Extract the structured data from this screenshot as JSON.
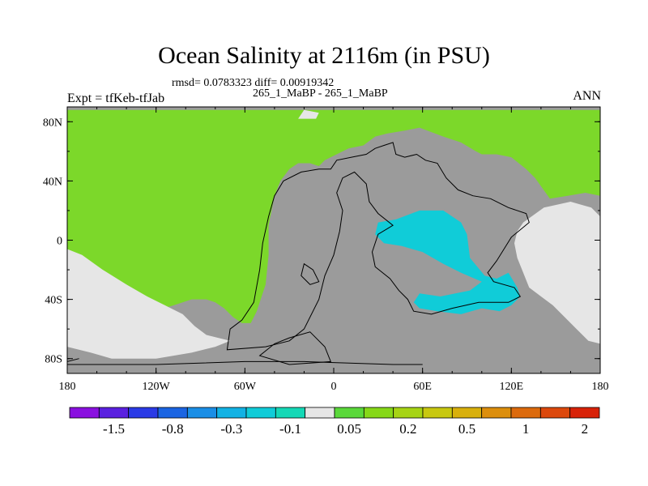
{
  "chart_data": {
    "type": "heatmap",
    "title": "Ocean Salinity at 2116m (in PSU)",
    "stats_text": "rmsd= 0.0783323 diff= 0.00919342",
    "subtitle": "265_1_MaBP - 265_1_MaBP",
    "left_label": "Expt = tfKeb-tfJab",
    "right_label": "ANN",
    "xlim": [
      -180,
      180
    ],
    "ylim": [
      -90,
      90
    ],
    "x_ticks": [
      {
        "value": -180,
        "label": "180"
      },
      {
        "value": -120,
        "label": "120W"
      },
      {
        "value": -60,
        "label": "60W"
      },
      {
        "value": 0,
        "label": "0"
      },
      {
        "value": 60,
        "label": "60E"
      },
      {
        "value": 120,
        "label": "120E"
      },
      {
        "value": 180,
        "label": "180"
      }
    ],
    "y_ticks": [
      {
        "value": 80,
        "label": "80N"
      },
      {
        "value": 40,
        "label": "40N"
      },
      {
        "value": 0,
        "label": "0"
      },
      {
        "value": -40,
        "label": "40S"
      },
      {
        "value": -80,
        "label": "80S"
      }
    ],
    "colorbar": {
      "colors": [
        "#8a10e0",
        "#5a20e0",
        "#2a3ae6",
        "#1a64e2",
        "#1a8ee6",
        "#12b2e4",
        "#10ccd8",
        "#14d8b6",
        "#e6e6e6",
        "#5ad83a",
        "#86d818",
        "#a6d414",
        "#c8c810",
        "#d8b00c",
        "#dc8e0c",
        "#dc6a0c",
        "#dc480c",
        "#d82208"
      ],
      "labels": [
        {
          "after_box": 2,
          "text": "-1.5"
        },
        {
          "after_box": 4,
          "text": "-0.8"
        },
        {
          "after_box": 6,
          "text": "-0.3"
        },
        {
          "after_box": 8,
          "text": "-0.1"
        },
        {
          "after_box": 10,
          "text": "0.05"
        },
        {
          "after_box": 12,
          "text": "0.2"
        },
        {
          "after_box": 14,
          "text": "0.5"
        },
        {
          "after_box": 16,
          "text": "1"
        },
        {
          "after_box": 18,
          "text": "2"
        }
      ]
    },
    "regions": {
      "background_land": "#9b9b9b",
      "green_positive": "#7cd82a",
      "light_near_zero": "#e6e6e6",
      "cyan_negative": "#10ccd8"
    },
    "polygons": {
      "green_main": [
        [
          -180,
          88
        ],
        [
          -180,
          -66
        ],
        [
          -176,
          -66
        ],
        [
          -168,
          -64
        ],
        [
          -158,
          -62
        ],
        [
          -148,
          -58
        ],
        [
          -136,
          -52
        ],
        [
          -122,
          -48
        ],
        [
          -108,
          -44
        ],
        [
          -96,
          -40
        ],
        [
          -86,
          -40
        ],
        [
          -80,
          -42
        ],
        [
          -74,
          -46
        ],
        [
          -68,
          -52
        ],
        [
          -62,
          -56
        ],
        [
          -56,
          -56
        ],
        [
          -52,
          -48
        ],
        [
          -46,
          -30
        ],
        [
          -44,
          -10
        ],
        [
          -44,
          10
        ],
        [
          -40,
          30
        ],
        [
          -36,
          40
        ],
        [
          -30,
          48
        ],
        [
          -24,
          52
        ],
        [
          -16,
          52
        ],
        [
          -10,
          50
        ],
        [
          -6,
          54
        ],
        [
          2,
          58
        ],
        [
          10,
          62
        ],
        [
          20,
          64
        ],
        [
          28,
          70
        ],
        [
          36,
          72
        ],
        [
          48,
          74
        ],
        [
          58,
          76
        ],
        [
          74,
          70
        ],
        [
          86,
          66
        ],
        [
          96,
          60
        ],
        [
          100,
          58
        ],
        [
          110,
          58
        ],
        [
          120,
          56
        ],
        [
          130,
          48
        ],
        [
          136,
          42
        ],
        [
          146,
          28
        ],
        [
          158,
          30
        ],
        [
          170,
          32
        ],
        [
          180,
          30
        ],
        [
          180,
          88
        ]
      ],
      "light_sw": [
        [
          -180,
          -6
        ],
        [
          -170,
          -10
        ],
        [
          -156,
          -20
        ],
        [
          -140,
          -30
        ],
        [
          -126,
          -38
        ],
        [
          -114,
          -44
        ],
        [
          -102,
          -50
        ],
        [
          -94,
          -58
        ],
        [
          -86,
          -64
        ],
        [
          -78,
          -66
        ],
        [
          -70,
          -68
        ],
        [
          -80,
          -72
        ],
        [
          -96,
          -76
        ],
        [
          -120,
          -80
        ],
        [
          -150,
          -80
        ],
        [
          -164,
          -76
        ],
        [
          -180,
          -72
        ]
      ],
      "light_ne": [
        [
          128,
          12
        ],
        [
          142,
          22
        ],
        [
          160,
          26
        ],
        [
          174,
          22
        ],
        [
          180,
          16
        ],
        [
          180,
          -70
        ],
        [
          172,
          -68
        ],
        [
          164,
          -60
        ],
        [
          156,
          -52
        ],
        [
          148,
          -44
        ],
        [
          140,
          -38
        ],
        [
          132,
          -32
        ],
        [
          128,
          -22
        ],
        [
          124,
          -12
        ],
        [
          122,
          -2
        ],
        [
          124,
          6
        ]
      ],
      "light_arctic": [
        [
          -20,
          88
        ],
        [
          -10,
          86
        ],
        [
          -12,
          82
        ],
        [
          -24,
          82
        ]
      ],
      "cyan_main": [
        [
          30,
          12
        ],
        [
          42,
          14
        ],
        [
          58,
          20
        ],
        [
          74,
          20
        ],
        [
          86,
          12
        ],
        [
          90,
          4
        ],
        [
          92,
          -12
        ],
        [
          102,
          -24
        ],
        [
          110,
          -26
        ],
        [
          118,
          -22
        ],
        [
          124,
          -32
        ],
        [
          126,
          -38
        ],
        [
          120,
          -44
        ],
        [
          112,
          -48
        ],
        [
          100,
          -46
        ],
        [
          86,
          -50
        ],
        [
          70,
          -48
        ],
        [
          58,
          -46
        ],
        [
          54,
          -42
        ],
        [
          58,
          -36
        ],
        [
          72,
          -38
        ],
        [
          92,
          -34
        ],
        [
          100,
          -28
        ],
        [
          86,
          -22
        ],
        [
          74,
          -16
        ],
        [
          60,
          -8
        ],
        [
          46,
          -4
        ],
        [
          34,
          -2
        ],
        [
          28,
          4
        ]
      ],
      "black_outline": [
        [
          -72,
          -74
        ],
        [
          -70,
          -60
        ],
        [
          -62,
          -54
        ],
        [
          -54,
          -42
        ],
        [
          -50,
          -20
        ],
        [
          -48,
          -2
        ],
        [
          -44,
          16
        ],
        [
          -40,
          30
        ],
        [
          -34,
          40
        ],
        [
          -22,
          46
        ],
        [
          -10,
          48
        ],
        [
          -2,
          48
        ],
        [
          2,
          54
        ],
        [
          12,
          56
        ],
        [
          22,
          58
        ],
        [
          28,
          62
        ],
        [
          34,
          64
        ],
        [
          40,
          66
        ],
        [
          42,
          58
        ],
        [
          48,
          56
        ],
        [
          56,
          58
        ],
        [
          62,
          54
        ],
        [
          70,
          52
        ],
        [
          76,
          42
        ],
        [
          84,
          34
        ],
        [
          94,
          30
        ],
        [
          106,
          28
        ],
        [
          118,
          22
        ],
        [
          130,
          18
        ],
        [
          132,
          12
        ],
        [
          120,
          2
        ],
        [
          110,
          -14
        ],
        [
          104,
          -22
        ],
        [
          108,
          -28
        ],
        [
          122,
          -32
        ],
        [
          126,
          -38
        ],
        [
          118,
          -42
        ],
        [
          98,
          -42
        ],
        [
          80,
          -46
        ],
        [
          66,
          -50
        ],
        [
          54,
          -48
        ],
        [
          50,
          -40
        ],
        [
          44,
          -34
        ],
        [
          38,
          -26
        ],
        [
          28,
          -18
        ],
        [
          26,
          -8
        ],
        [
          30,
          4
        ],
        [
          40,
          10
        ],
        [
          30,
          18
        ],
        [
          24,
          26
        ],
        [
          22,
          38
        ],
        [
          14,
          46
        ],
        [
          6,
          42
        ],
        [
          2,
          32
        ],
        [
          6,
          20
        ],
        [
          4,
          6
        ],
        [
          0,
          -10
        ],
        [
          -6,
          -24
        ],
        [
          -10,
          -40
        ],
        [
          -20,
          -60
        ],
        [
          -30,
          -68
        ],
        [
          -46,
          -72
        ]
      ],
      "black_inner": [
        [
          -16,
          -62
        ],
        [
          -6,
          -72
        ],
        [
          -2,
          -82
        ],
        [
          -30,
          -84
        ],
        [
          -50,
          -78
        ],
        [
          -40,
          -70
        ],
        [
          -30,
          -66
        ]
      ],
      "black_antarctic": [
        [
          -172,
          -80
        ],
        [
          -180,
          -82
        ],
        [
          -180,
          -84
        ],
        [
          -120,
          -84
        ],
        [
          -60,
          -82
        ],
        [
          -20,
          -82
        ],
        [
          40,
          -84
        ],
        [
          60,
          -84
        ]
      ],
      "black_island": [
        [
          -20,
          -16
        ],
        [
          -14,
          -20
        ],
        [
          -10,
          -28
        ],
        [
          -16,
          -30
        ],
        [
          -22,
          -24
        ]
      ]
    }
  }
}
